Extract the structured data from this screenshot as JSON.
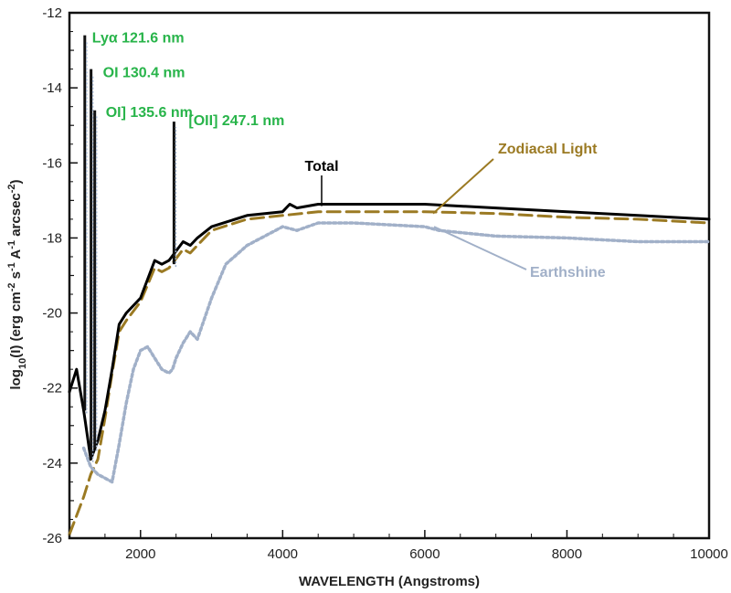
{
  "chart_data": {
    "type": "line",
    "xlabel": "WAVELENGTH (Angstroms)",
    "ylabel": {
      "parts": [
        {
          "t": "log",
          "s": "normal"
        },
        {
          "t": "10",
          "s": "sub"
        },
        {
          "t": "(I) (erg cm",
          "s": "normal"
        },
        {
          "t": "-2",
          "s": "sup"
        },
        {
          "t": " s",
          "s": "normal"
        },
        {
          "t": "-1",
          "s": "sup"
        },
        {
          "t": " A",
          "s": "normal"
        },
        {
          "t": "-1",
          "s": "sup"
        },
        {
          "t": " arcsec",
          "s": "normal"
        },
        {
          "t": "-2",
          "s": "sup"
        },
        {
          "t": ")",
          "s": "normal"
        }
      ]
    },
    "xlim": [
      1000,
      10000
    ],
    "ylim": [
      -26,
      -12
    ],
    "xticks": [
      2000,
      4000,
      6000,
      8000,
      10000
    ],
    "yticks": [
      -12,
      -14,
      -16,
      -18,
      -20,
      -22,
      -24,
      -26
    ],
    "xtick_labels": [
      "2000",
      "4000",
      "6000",
      "8000",
      "10000"
    ],
    "ytick_labels": [
      "-12",
      "-14",
      "-16",
      "-18",
      "-20",
      "-22",
      "-24",
      "-26"
    ],
    "grid": false,
    "series": [
      {
        "name": "Zodiacal Light",
        "color": "#9b7a23",
        "dash": "dashed",
        "x": [
          1000,
          1100,
          1200,
          1300,
          1400,
          1500,
          1600,
          1700,
          1800,
          2000,
          2200,
          2300,
          2400,
          2600,
          2700,
          2800,
          3000,
          3500,
          4000,
          4500,
          5000,
          6000,
          7000,
          8000,
          9000,
          10000
        ],
        "y": [
          -25.9,
          -25.4,
          -24.9,
          -24.3,
          -23.9,
          -22.8,
          -21.6,
          -20.5,
          -20.2,
          -19.7,
          -18.8,
          -18.9,
          -18.8,
          -18.3,
          -18.4,
          -18.2,
          -17.8,
          -17.5,
          -17.4,
          -17.3,
          -17.3,
          -17.3,
          -17.35,
          -17.45,
          -17.5,
          -17.6
        ]
      },
      {
        "name": "Earthshine",
        "color": "#a1b0c8",
        "dash": "dotted",
        "x": [
          1200,
          1300,
          1400,
          1500,
          1600,
          1700,
          1800,
          1900,
          2000,
          2100,
          2200,
          2300,
          2400,
          2450,
          2500,
          2600,
          2700,
          2800,
          3000,
          3200,
          3500,
          4000,
          4200,
          4500,
          5000,
          6000,
          6200,
          7000,
          8000,
          8500,
          9000,
          10000
        ],
        "y": [
          -23.6,
          -24.1,
          -24.3,
          -24.4,
          -24.5,
          -23.5,
          -22.4,
          -21.5,
          -21.0,
          -20.9,
          -21.2,
          -21.5,
          -21.6,
          -21.5,
          -21.2,
          -20.8,
          -20.5,
          -20.7,
          -19.6,
          -18.7,
          -18.2,
          -17.7,
          -17.8,
          -17.6,
          -17.6,
          -17.7,
          -17.8,
          -17.95,
          -18.0,
          -18.05,
          -18.1,
          -18.1
        ]
      },
      {
        "name": "Total",
        "color": "#000000",
        "dash": "solid",
        "x": [
          1000,
          1100,
          1200,
          1300,
          1400,
          1500,
          1600,
          1700,
          1800,
          2000,
          2200,
          2300,
          2400,
          2600,
          2700,
          2800,
          3000,
          3500,
          4000,
          4100,
          4200,
          4500,
          5000,
          6000,
          7000,
          8000,
          9000,
          10000
        ],
        "y": [
          -22.1,
          -21.5,
          -22.6,
          -23.9,
          -23.4,
          -22.6,
          -21.5,
          -20.3,
          -20.0,
          -19.6,
          -18.6,
          -18.7,
          -18.6,
          -18.1,
          -18.2,
          -18.0,
          -17.7,
          -17.4,
          -17.3,
          -17.1,
          -17.2,
          -17.1,
          -17.1,
          -17.1,
          -17.2,
          -17.3,
          -17.4,
          -17.5
        ]
      }
    ],
    "emission_lines": [
      {
        "label": "Lyα 121.6 nm",
        "wavelength": 1216,
        "peak": -12.6,
        "base": -22.6
      },
      {
        "label": "OI 130.4 nm",
        "wavelength": 1304,
        "peak": -13.5,
        "base": -23.9
      },
      {
        "label": "OI] 135.6 nm",
        "wavelength": 1356,
        "peak": -14.6,
        "base": -23.6
      },
      {
        "label": "[OII] 247.1 nm",
        "wavelength": 2471,
        "peak": -14.9,
        "base": -18.7
      }
    ],
    "annotations": {
      "line_label_color": "#28b44a",
      "series_labels": [
        {
          "text": "Total",
          "color": "#000000"
        },
        {
          "text": "Zodiacal Light",
          "color": "#9b7a23"
        },
        {
          "text": "Earthshine",
          "color": "#a1b0c8"
        }
      ]
    }
  }
}
